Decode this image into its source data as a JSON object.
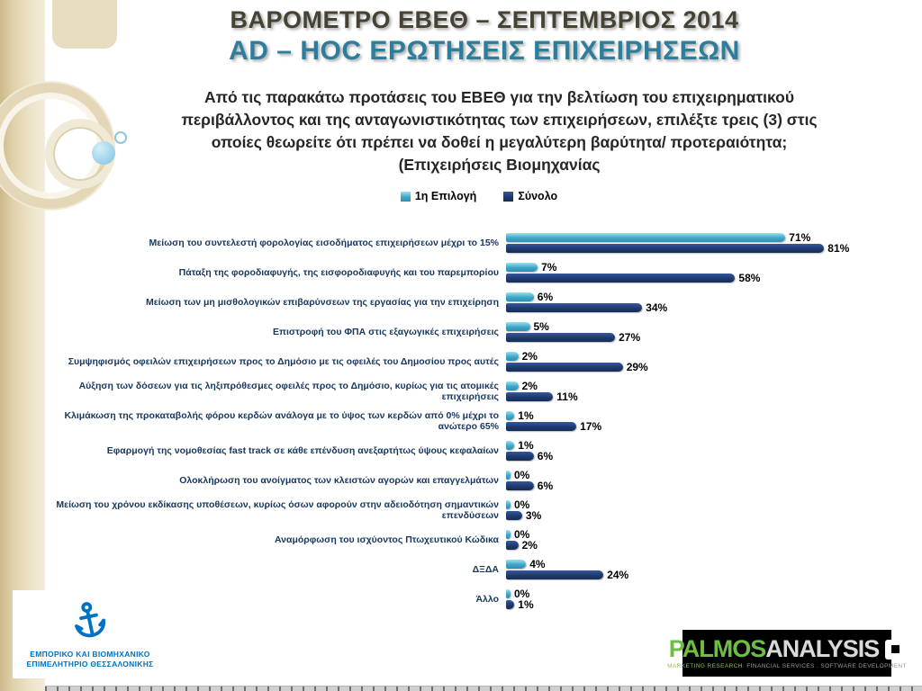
{
  "slide": {
    "title_line1": "ΒΑΡΟΜΕΤΡΟ ΕΒΕΘ – ΣΕΠΤΕΜΒΡΙΟΣ 2014",
    "title_line2": "AD – HOC ΕΡΩΤΗΣΕΙΣ ΕΠΙΧΕΙΡΗΣΕΩΝ",
    "subtitle_lines": [
      "Από τις παρακάτω προτάσεις του ΕΒΕΘ για την βελτίωση του επιχειρηματικού",
      "περιβάλλοντος και της ανταγωνιστικότητας των επιχειρήσεων, επιλέξτε τρεις (3) στις",
      "οποίες θεωρείτε ότι πρέπει να δοθεί η μεγαλύτερη βαρύτητα/ προτεραιότητα;",
      "(Επιχειρήσεις Βιομηχανίας"
    ]
  },
  "chart_data": {
    "type": "bar",
    "orientation": "horizontal",
    "legend_position": "top",
    "grid": false,
    "xlim": [
      0,
      100
    ],
    "unit": "%",
    "colors": {
      "first_choice": "#41a8cc",
      "total": "#1f3864"
    },
    "categories": [
      "Μείωση του συντελεστή φορολογίας εισοδήματος επιχειρήσεων μέχρι το 15%",
      "Πάταξη της φοροδιαφυγής, της εισφοροδιαφυγής και του παρεμπορίου",
      "Μείωση των μη μισθολογικών επιβαρύνσεων της εργασίας για την επιχείρηση",
      "Επιστροφή του ΦΠΑ στις εξαγωγικές επιχειρήσεις",
      "Συμψηφισμός οφειλών επιχειρήσεων προς το Δημόσιο με τις οφειλές του Δημοσίου προς αυτές",
      "Αύξηση των δόσεων για τις ληξιπρόθεσμες οφειλές προς το Δημόσιο, κυρίως για τις ατομικές επιχειρήσεις",
      "Κλιμάκωση της προκαταβολής φόρου κερδών ανάλογα με το ύψος των κερδών από 0% μέχρι το ανώτερο 65%",
      "Εφαρμογή της νομοθεσίας fast track σε κάθε επένδυση ανεξαρτήτως ύψους κεφαλαίων",
      "Ολοκλήρωση του ανοίγματος των κλειστών αγορών και επαγγελμάτων",
      "Μείωση του χρόνου εκδίκασης υποθέσεων, κυρίως όσων αφορούν στην αδειοδότηση σημαντικών επενδύσεων",
      "Αναμόρφωση του ισχύοντος Πτωχευτικού Κώδικα",
      "ΔΞΔΑ",
      "Άλλο"
    ],
    "series": [
      {
        "name": "1η Επιλογή",
        "values": [
          71,
          7,
          6,
          5,
          2,
          2,
          1,
          1,
          0,
          0,
          0,
          4,
          0
        ]
      },
      {
        "name": "Σύνολο",
        "values": [
          81,
          58,
          34,
          27,
          29,
          11,
          17,
          6,
          6,
          3,
          2,
          24,
          1
        ]
      }
    ]
  },
  "footer": {
    "ebeth": {
      "line1": "ΕΜΠΟΡΙΚΟ ΚΑΙ ΒΙΟΜΗΧΑΝΙΚΟ",
      "line2": "ΕΠΙΜΕΛΗΤΗΡΙΟ ΘΕΣΣΑΛΟΝΙΚΗΣ"
    },
    "palmos": {
      "name_green": "PALMOS",
      "name_gray": "ANALYSIS",
      "tagline_green": "MARKETING RESEARCH",
      "tagline_gray": ". FINANCIAL SERVICES . SOFTWARE DEVELOPMENT"
    }
  }
}
